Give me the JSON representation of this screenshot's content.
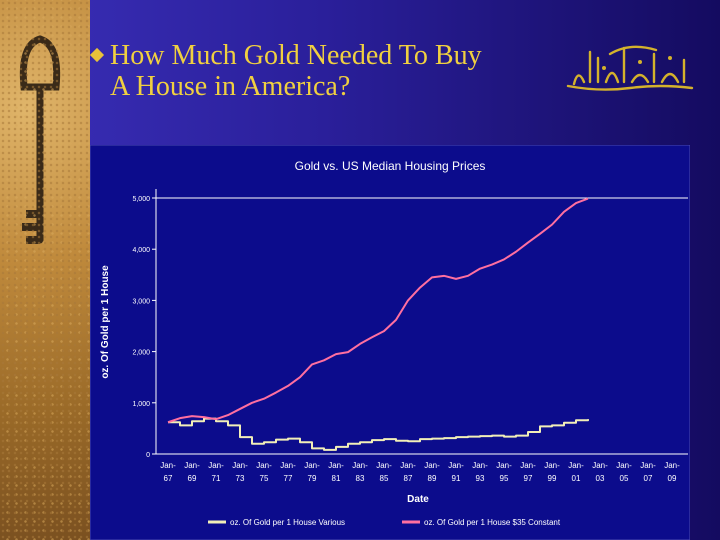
{
  "slide": {
    "title_line1": "How Much Gold Needed To Buy",
    "title_line2": "A House in America?"
  },
  "colors": {
    "title": "#f0d040",
    "series_various": "#f2efb8",
    "series_constant": "#ff6fa0",
    "plot_bg": "#0c0c8c"
  },
  "chart_data": {
    "type": "line",
    "title": "Gold vs. US Median Housing Prices",
    "xlabel": "Date",
    "ylabel": "oz. Of Gold per 1 House",
    "ylim": [
      0,
      5000
    ],
    "yticks": [
      "0",
      "1,000",
      "2,000",
      "3,000",
      "4,000",
      "5,000"
    ],
    "xlim": [
      1967,
      2009
    ],
    "xticks": [
      {
        "top": "Jan-",
        "bottom": "67",
        "year": 1967
      },
      {
        "top": "Jan-",
        "bottom": "69",
        "year": 1969
      },
      {
        "top": "Jan-",
        "bottom": "71",
        "year": 1971
      },
      {
        "top": "Jan-",
        "bottom": "73",
        "year": 1973
      },
      {
        "top": "Jan-",
        "bottom": "75",
        "year": 1975
      },
      {
        "top": "Jan-",
        "bottom": "77",
        "year": 1977
      },
      {
        "top": "Jan-",
        "bottom": "79",
        "year": 1979
      },
      {
        "top": "Jan-",
        "bottom": "81",
        "year": 1981
      },
      {
        "top": "Jan-",
        "bottom": "83",
        "year": 1983
      },
      {
        "top": "Jan-",
        "bottom": "85",
        "year": 1985
      },
      {
        "top": "Jan-",
        "bottom": "87",
        "year": 1987
      },
      {
        "top": "Jan-",
        "bottom": "89",
        "year": 1989
      },
      {
        "top": "Jan-",
        "bottom": "91",
        "year": 1991
      },
      {
        "top": "Jan-",
        "bottom": "93",
        "year": 1993
      },
      {
        "top": "Jan-",
        "bottom": "95",
        "year": 1995
      },
      {
        "top": "Jan-",
        "bottom": "97",
        "year": 1997
      },
      {
        "top": "Jan-",
        "bottom": "99",
        "year": 1999
      },
      {
        "top": "Jan-",
        "bottom": "01",
        "year": 2001
      },
      {
        "top": "Jan-",
        "bottom": "03",
        "year": 2003
      },
      {
        "top": "Jan-",
        "bottom": "05",
        "year": 2005
      },
      {
        "top": "Jan-",
        "bottom": "07",
        "year": 2007
      },
      {
        "top": "Jan-",
        "bottom": "09",
        "year": 2009
      }
    ],
    "grid": "horizontal line at 5,000 only",
    "legend": "bottom",
    "series": [
      {
        "name": "oz. Of Gold per 1 House Various",
        "points": [
          [
            1967,
            620
          ],
          [
            1968,
            560
          ],
          [
            1969,
            640
          ],
          [
            1970,
            690
          ],
          [
            1971,
            640
          ],
          [
            1972,
            560
          ],
          [
            1973,
            330
          ],
          [
            1974,
            200
          ],
          [
            1975,
            230
          ],
          [
            1976,
            280
          ],
          [
            1977,
            300
          ],
          [
            1978,
            230
          ],
          [
            1979,
            110
          ],
          [
            1980,
            80
          ],
          [
            1981,
            140
          ],
          [
            1982,
            200
          ],
          [
            1983,
            230
          ],
          [
            1984,
            270
          ],
          [
            1985,
            290
          ],
          [
            1986,
            260
          ],
          [
            1987,
            250
          ],
          [
            1988,
            290
          ],
          [
            1989,
            300
          ],
          [
            1990,
            310
          ],
          [
            1991,
            330
          ],
          [
            1992,
            340
          ],
          [
            1993,
            350
          ],
          [
            1994,
            360
          ],
          [
            1995,
            340
          ],
          [
            1996,
            360
          ],
          [
            1997,
            430
          ],
          [
            1998,
            540
          ],
          [
            1999,
            560
          ],
          [
            2000,
            610
          ],
          [
            2001,
            660
          ],
          [
            2002,
            680
          ]
        ]
      },
      {
        "name": "oz. Of Gold per 1 House $35 Constant",
        "points": [
          [
            1967,
            620
          ],
          [
            1968,
            700
          ],
          [
            1969,
            740
          ],
          [
            1970,
            720
          ],
          [
            1971,
            680
          ],
          [
            1972,
            760
          ],
          [
            1973,
            880
          ],
          [
            1974,
            1000
          ],
          [
            1975,
            1080
          ],
          [
            1976,
            1200
          ],
          [
            1977,
            1330
          ],
          [
            1978,
            1500
          ],
          [
            1979,
            1750
          ],
          [
            1980,
            1830
          ],
          [
            1981,
            1950
          ],
          [
            1982,
            1990
          ],
          [
            1983,
            2150
          ],
          [
            1984,
            2280
          ],
          [
            1985,
            2400
          ],
          [
            1986,
            2620
          ],
          [
            1987,
            3000
          ],
          [
            1988,
            3250
          ],
          [
            1989,
            3450
          ],
          [
            1990,
            3480
          ],
          [
            1991,
            3420
          ],
          [
            1992,
            3480
          ],
          [
            1993,
            3620
          ],
          [
            1994,
            3700
          ],
          [
            1995,
            3800
          ],
          [
            1996,
            3950
          ],
          [
            1997,
            4130
          ],
          [
            1998,
            4300
          ],
          [
            1999,
            4480
          ],
          [
            2000,
            4730
          ],
          [
            2001,
            4900
          ],
          [
            2002,
            4990
          ]
        ]
      }
    ]
  }
}
